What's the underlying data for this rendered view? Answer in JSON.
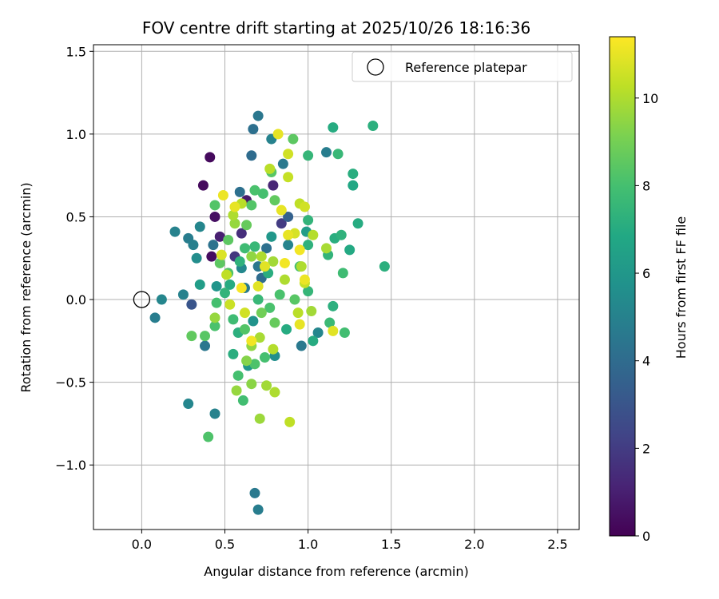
{
  "chart_data": {
    "type": "scatter",
    "title": "FOV centre drift starting at 2025/10/26 18:16:36",
    "xlabel": "Angular distance from reference (arcmin)",
    "ylabel": "Rotation from reference (arcmin)",
    "xlim": [
      -0.29,
      2.63
    ],
    "ylim": [
      -1.39,
      1.54
    ],
    "x_ticks": [
      0.0,
      0.5,
      1.0,
      1.5,
      2.0,
      2.5
    ],
    "x_tick_labels": [
      "0.0",
      "0.5",
      "1.0",
      "1.5",
      "2.0",
      "2.5"
    ],
    "y_ticks": [
      -1.0,
      -0.5,
      0.0,
      0.5,
      1.0,
      1.5
    ],
    "y_tick_labels": [
      "−1.0",
      "−0.5",
      "0.0",
      "0.5",
      "1.0",
      "1.5"
    ],
    "grid": true,
    "legend": {
      "position": "top-right",
      "entries": [
        "Reference platepar"
      ]
    },
    "reference_point": {
      "x": 0.0,
      "y": 0.0,
      "label": "Reference platepar"
    },
    "colorbar": {
      "label": "Hours from first FF file",
      "colormap": "viridis",
      "range": [
        0,
        11.4
      ],
      "ticks": [
        0,
        2,
        4,
        6,
        8,
        10
      ],
      "tick_labels": [
        "0",
        "2",
        "4",
        "6",
        "8",
        "10"
      ]
    },
    "points": [
      {
        "x": 0.41,
        "y": 0.86,
        "h": 0.3
      },
      {
        "x": 0.37,
        "y": 0.69,
        "h": 0.3
      },
      {
        "x": 0.44,
        "y": 0.5,
        "h": 0.5
      },
      {
        "x": 0.42,
        "y": 0.26,
        "h": 0.4
      },
      {
        "x": 0.47,
        "y": 0.38,
        "h": 1.0
      },
      {
        "x": 0.79,
        "y": 0.69,
        "h": 1.2
      },
      {
        "x": 0.63,
        "y": 0.6,
        "h": 0.8
      },
      {
        "x": 0.6,
        "y": 0.4,
        "h": 1.5
      },
      {
        "x": 0.3,
        "y": -0.03,
        "h": 3.0
      },
      {
        "x": 0.84,
        "y": 0.46,
        "h": 2.0
      },
      {
        "x": 0.88,
        "y": 0.5,
        "h": 3.5
      },
      {
        "x": 0.56,
        "y": 0.26,
        "h": 1.8
      },
      {
        "x": 0.7,
        "y": 1.11,
        "h": 4.5
      },
      {
        "x": 0.67,
        "y": 1.03,
        "h": 4.2
      },
      {
        "x": 0.66,
        "y": 0.87,
        "h": 4.0
      },
      {
        "x": 0.78,
        "y": 0.97,
        "h": 5.0
      },
      {
        "x": 0.85,
        "y": 0.82,
        "h": 4.6
      },
      {
        "x": 1.11,
        "y": 0.89,
        "h": 4.8
      },
      {
        "x": 0.59,
        "y": 0.65,
        "h": 4.2
      },
      {
        "x": 0.2,
        "y": 0.41,
        "h": 5.0
      },
      {
        "x": 0.28,
        "y": 0.37,
        "h": 4.8
      },
      {
        "x": 0.31,
        "y": 0.33,
        "h": 4.9
      },
      {
        "x": 0.35,
        "y": 0.44,
        "h": 5.2
      },
      {
        "x": 0.33,
        "y": 0.25,
        "h": 5.5
      },
      {
        "x": 0.43,
        "y": 0.33,
        "h": 4.3
      },
      {
        "x": 0.12,
        "y": 0.0,
        "h": 5.2
      },
      {
        "x": 0.08,
        "y": -0.11,
        "h": 4.8
      },
      {
        "x": 0.25,
        "y": 0.03,
        "h": 5.0
      },
      {
        "x": 0.38,
        "y": -0.28,
        "h": 4.5
      },
      {
        "x": 0.28,
        "y": -0.63,
        "h": 5.2
      },
      {
        "x": 0.44,
        "y": -0.69,
        "h": 5.0
      },
      {
        "x": 0.68,
        "y": -1.17,
        "h": 4.6
      },
      {
        "x": 0.7,
        "y": -1.27,
        "h": 4.8
      },
      {
        "x": 0.96,
        "y": -0.28,
        "h": 4.6
      },
      {
        "x": 1.06,
        "y": -0.2,
        "h": 5.2
      },
      {
        "x": 0.75,
        "y": 0.31,
        "h": 4.2
      },
      {
        "x": 0.7,
        "y": 0.2,
        "h": 4.5
      },
      {
        "x": 0.62,
        "y": 0.07,
        "h": 4.7
      },
      {
        "x": 0.72,
        "y": 0.13,
        "h": 4.0
      },
      {
        "x": 0.6,
        "y": 0.19,
        "h": 5.3
      },
      {
        "x": 0.88,
        "y": 0.33,
        "h": 5.1
      },
      {
        "x": 0.78,
        "y": 0.38,
        "h": 6.0
      },
      {
        "x": 0.99,
        "y": 0.41,
        "h": 6.3
      },
      {
        "x": 0.64,
        "y": -0.4,
        "h": 6.0
      },
      {
        "x": 0.8,
        "y": -0.34,
        "h": 5.6
      },
      {
        "x": 0.67,
        "y": -0.13,
        "h": 5.8
      },
      {
        "x": 0.35,
        "y": 0.09,
        "h": 6.3
      },
      {
        "x": 0.45,
        "y": 0.08,
        "h": 5.9
      },
      {
        "x": 1.15,
        "y": 1.04,
        "h": 7.0
      },
      {
        "x": 1.39,
        "y": 1.05,
        "h": 7.2
      },
      {
        "x": 1.27,
        "y": 0.76,
        "h": 7.1
      },
      {
        "x": 1.27,
        "y": 0.69,
        "h": 6.8
      },
      {
        "x": 1.18,
        "y": 0.88,
        "h": 7.6
      },
      {
        "x": 1.0,
        "y": 0.87,
        "h": 7.5
      },
      {
        "x": 1.46,
        "y": 0.2,
        "h": 7.2
      },
      {
        "x": 1.3,
        "y": 0.46,
        "h": 7.0
      },
      {
        "x": 1.25,
        "y": 0.3,
        "h": 6.9
      },
      {
        "x": 1.2,
        "y": 0.39,
        "h": 7.3
      },
      {
        "x": 1.16,
        "y": 0.37,
        "h": 7.1
      },
      {
        "x": 1.12,
        "y": 0.27,
        "h": 7.4
      },
      {
        "x": 1.21,
        "y": 0.16,
        "h": 7.8
      },
      {
        "x": 1.15,
        "y": -0.04,
        "h": 7.2
      },
      {
        "x": 1.22,
        "y": -0.2,
        "h": 7.9
      },
      {
        "x": 1.13,
        "y": -0.14,
        "h": 7.7
      },
      {
        "x": 1.03,
        "y": -0.25,
        "h": 7.0
      },
      {
        "x": 1.0,
        "y": 0.48,
        "h": 7.4
      },
      {
        "x": 1.0,
        "y": 0.33,
        "h": 7.3
      },
      {
        "x": 1.0,
        "y": 0.05,
        "h": 7.5
      },
      {
        "x": 0.87,
        "y": -0.18,
        "h": 7.0
      },
      {
        "x": 0.76,
        "y": 0.16,
        "h": 7.1
      },
      {
        "x": 0.68,
        "y": 0.32,
        "h": 7.6
      },
      {
        "x": 0.59,
        "y": 0.23,
        "h": 7.3
      },
      {
        "x": 0.53,
        "y": 0.09,
        "h": 7.0
      },
      {
        "x": 0.5,
        "y": 0.04,
        "h": 7.4
      },
      {
        "x": 0.55,
        "y": -0.12,
        "h": 7.8
      },
      {
        "x": 0.58,
        "y": -0.2,
        "h": 7.2
      },
      {
        "x": 0.55,
        "y": -0.33,
        "h": 7.1
      },
      {
        "x": 0.58,
        "y": -0.46,
        "h": 8.0
      },
      {
        "x": 0.61,
        "y": -0.61,
        "h": 7.9
      },
      {
        "x": 0.68,
        "y": -0.39,
        "h": 8.2
      },
      {
        "x": 0.74,
        "y": -0.35,
        "h": 8.0
      },
      {
        "x": 0.77,
        "y": -0.05,
        "h": 8.1
      },
      {
        "x": 0.7,
        "y": 0.0,
        "h": 7.6
      },
      {
        "x": 0.62,
        "y": 0.31,
        "h": 7.8
      },
      {
        "x": 0.73,
        "y": 0.64,
        "h": 8.0
      },
      {
        "x": 0.68,
        "y": 0.66,
        "h": 8.1
      },
      {
        "x": 0.66,
        "y": 0.57,
        "h": 8.3
      },
      {
        "x": 0.78,
        "y": 0.77,
        "h": 8.4
      },
      {
        "x": 0.44,
        "y": 0.57,
        "h": 8.3
      },
      {
        "x": 0.47,
        "y": 0.22,
        "h": 8.5
      },
      {
        "x": 0.52,
        "y": 0.16,
        "h": 8.2
      },
      {
        "x": 0.38,
        "y": -0.22,
        "h": 8.4
      },
      {
        "x": 0.3,
        "y": -0.22,
        "h": 8.6
      },
      {
        "x": 0.44,
        "y": -0.16,
        "h": 8.1
      },
      {
        "x": 0.45,
        "y": -0.02,
        "h": 8.0
      },
      {
        "x": 0.4,
        "y": -0.83,
        "h": 8.2
      },
      {
        "x": 0.91,
        "y": 0.97,
        "h": 8.5
      },
      {
        "x": 0.8,
        "y": 0.6,
        "h": 8.6
      },
      {
        "x": 0.92,
        "y": 0.0,
        "h": 8.4
      },
      {
        "x": 0.83,
        "y": 0.03,
        "h": 8.1
      },
      {
        "x": 0.95,
        "y": 0.2,
        "h": 8.0
      },
      {
        "x": 0.63,
        "y": 0.45,
        "h": 8.7
      },
      {
        "x": 0.52,
        "y": 0.36,
        "h": 8.5
      },
      {
        "x": 0.72,
        "y": -0.08,
        "h": 8.9
      },
      {
        "x": 0.62,
        "y": -0.18,
        "h": 8.3
      },
      {
        "x": 0.8,
        "y": -0.14,
        "h": 8.7
      },
      {
        "x": 0.44,
        "y": -0.11,
        "h": 9.6
      },
      {
        "x": 0.57,
        "y": -0.55,
        "h": 9.6
      },
      {
        "x": 0.66,
        "y": -0.51,
        "h": 9.4
      },
      {
        "x": 0.75,
        "y": -0.52,
        "h": 9.8
      },
      {
        "x": 0.8,
        "y": -0.56,
        "h": 10.0
      },
      {
        "x": 0.71,
        "y": -0.72,
        "h": 9.7
      },
      {
        "x": 0.89,
        "y": -0.74,
        "h": 10.3
      },
      {
        "x": 0.71,
        "y": -0.23,
        "h": 9.9
      },
      {
        "x": 0.79,
        "y": -0.3,
        "h": 10.1
      },
      {
        "x": 0.66,
        "y": -0.28,
        "h": 9.5
      },
      {
        "x": 0.63,
        "y": -0.37,
        "h": 9.3
      },
      {
        "x": 0.66,
        "y": 0.26,
        "h": 9.5
      },
      {
        "x": 0.72,
        "y": 0.26,
        "h": 10.0
      },
      {
        "x": 0.79,
        "y": 0.23,
        "h": 9.8
      },
      {
        "x": 0.56,
        "y": 0.46,
        "h": 9.6
      },
      {
        "x": 0.55,
        "y": 0.51,
        "h": 10.0
      },
      {
        "x": 0.6,
        "y": 0.58,
        "h": 10.2
      },
      {
        "x": 0.88,
        "y": 0.74,
        "h": 10.4
      },
      {
        "x": 0.88,
        "y": 0.88,
        "h": 10.6
      },
      {
        "x": 0.77,
        "y": 0.79,
        "h": 10.2
      },
      {
        "x": 0.95,
        "y": 0.58,
        "h": 10.3
      },
      {
        "x": 0.98,
        "y": 0.56,
        "h": 10.6
      },
      {
        "x": 1.03,
        "y": 0.39,
        "h": 10.1
      },
      {
        "x": 1.11,
        "y": 0.31,
        "h": 9.9
      },
      {
        "x": 0.96,
        "y": 0.2,
        "h": 10.0
      },
      {
        "x": 0.98,
        "y": 0.1,
        "h": 10.4
      },
      {
        "x": 1.02,
        "y": -0.07,
        "h": 9.8
      },
      {
        "x": 0.94,
        "y": -0.08,
        "h": 10.2
      },
      {
        "x": 0.86,
        "y": 0.12,
        "h": 10.0
      },
      {
        "x": 0.92,
        "y": 0.4,
        "h": 10.7
      },
      {
        "x": 0.48,
        "y": 0.27,
        "h": 10.8
      },
      {
        "x": 0.51,
        "y": 0.15,
        "h": 10.3
      },
      {
        "x": 0.53,
        "y": -0.03,
        "h": 10.5
      },
      {
        "x": 0.7,
        "y": 0.08,
        "h": 10.9
      },
      {
        "x": 0.82,
        "y": 1.0,
        "h": 11.0
      },
      {
        "x": 0.84,
        "y": 0.54,
        "h": 11.0
      },
      {
        "x": 0.49,
        "y": 0.63,
        "h": 11.1
      },
      {
        "x": 0.56,
        "y": 0.56,
        "h": 11.0
      },
      {
        "x": 0.95,
        "y": 0.3,
        "h": 11.2
      },
      {
        "x": 0.98,
        "y": 0.12,
        "h": 11.1
      },
      {
        "x": 1.15,
        "y": -0.19,
        "h": 10.9
      },
      {
        "x": 0.66,
        "y": -0.25,
        "h": 11.2
      },
      {
        "x": 0.95,
        "y": -0.15,
        "h": 11.0
      },
      {
        "x": 0.6,
        "y": 0.07,
        "h": 11.3
      },
      {
        "x": 0.62,
        "y": -0.08,
        "h": 10.6
      },
      {
        "x": 0.74,
        "y": 0.2,
        "h": 10.9
      },
      {
        "x": 0.88,
        "y": 0.39,
        "h": 11.0
      },
      {
        "x": 0.86,
        "y": 0.22,
        "h": 11.2
      }
    ]
  }
}
